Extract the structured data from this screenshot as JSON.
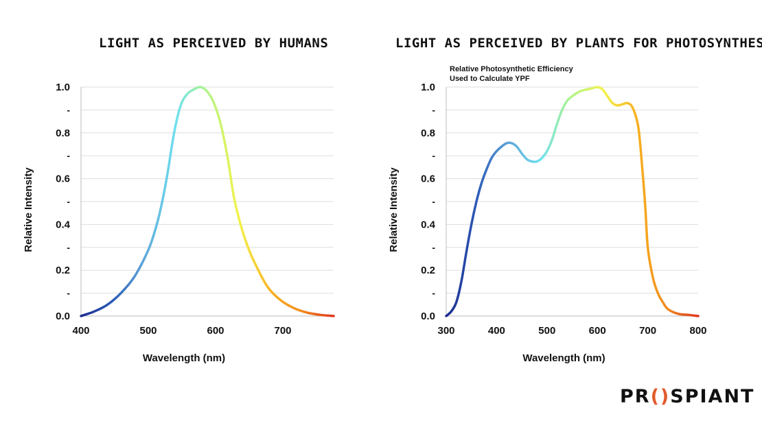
{
  "chart_data": [
    {
      "type": "line",
      "title": "LIGHT AS PERCEIVED BY HUMANS",
      "subtitle": "",
      "xlabel": "Wavelength (nm)",
      "ylabel": "Relative Intensity",
      "xlim": [
        400,
        780
      ],
      "ylim": [
        0,
        1.0
      ],
      "x_ticks": [
        "400",
        "500",
        "600",
        "700"
      ],
      "y_ticks": [
        "0.0",
        "-",
        "0.2",
        "-",
        "0.4",
        "-",
        "0.6",
        "-",
        "0.8",
        "-",
        "1.0"
      ],
      "grid": true,
      "series": [
        {
          "x": [
            400,
            420,
            440,
            460,
            480,
            500,
            510,
            520,
            530,
            540,
            550,
            560,
            570,
            580,
            590,
            600,
            610,
            620,
            630,
            640,
            650,
            660,
            680,
            700,
            720,
            740,
            760,
            780
          ],
          "values": [
            0.0,
            0.02,
            0.05,
            0.1,
            0.17,
            0.28,
            0.36,
            0.47,
            0.62,
            0.8,
            0.92,
            0.97,
            0.99,
            1.0,
            0.98,
            0.93,
            0.84,
            0.7,
            0.52,
            0.4,
            0.31,
            0.24,
            0.13,
            0.07,
            0.035,
            0.015,
            0.005,
            0.0
          ]
        }
      ]
    },
    {
      "type": "line",
      "title": "LIGHT AS PERCEIVED BY PLANTS FOR PHOTOSYNTHESIS",
      "subtitle": "Relative Photosynthetic Efficiency Used to Calculate YPF",
      "xlabel": "Wavelength (nm)",
      "ylabel": "Relative Intensity",
      "xlim": [
        300,
        800
      ],
      "ylim": [
        0,
        1.0
      ],
      "x_ticks": [
        "300",
        "400",
        "500",
        "600",
        "700",
        "800"
      ],
      "y_ticks": [
        "0.0",
        "-",
        "0.2",
        "-",
        "0.4",
        "-",
        "0.6",
        "-",
        "0.8",
        "-",
        "1.0"
      ],
      "grid": true,
      "series": [
        {
          "x": [
            300,
            310,
            320,
            330,
            340,
            350,
            360,
            370,
            380,
            390,
            400,
            410,
            420,
            430,
            440,
            450,
            460,
            470,
            480,
            490,
            500,
            510,
            520,
            530,
            540,
            550,
            560,
            570,
            580,
            590,
            600,
            610,
            620,
            630,
            640,
            650,
            660,
            670,
            680,
            685,
            690,
            695,
            700,
            710,
            720,
            730,
            740,
            760,
            780,
            800
          ],
          "values": [
            0.0,
            0.02,
            0.06,
            0.15,
            0.28,
            0.4,
            0.5,
            0.58,
            0.64,
            0.69,
            0.72,
            0.74,
            0.755,
            0.755,
            0.74,
            0.71,
            0.685,
            0.675,
            0.675,
            0.69,
            0.72,
            0.77,
            0.84,
            0.9,
            0.94,
            0.96,
            0.975,
            0.985,
            0.99,
            0.995,
            1.0,
            0.99,
            0.96,
            0.93,
            0.92,
            0.925,
            0.93,
            0.91,
            0.84,
            0.75,
            0.62,
            0.48,
            0.3,
            0.17,
            0.1,
            0.06,
            0.03,
            0.01,
            0.005,
            0.0
          ]
        }
      ]
    }
  ],
  "charts": {
    "left": {
      "title": "LIGHT AS PERCEIVED BY HUMANS"
    },
    "right": {
      "title": "LIGHT AS PERCEIVED BY PLANTS FOR PHOTOSYNTHESIS",
      "subtitle_line1": "Relative Photosynthetic Efficiency",
      "subtitle_line2": "Used to Calculate YPF"
    }
  },
  "logo": {
    "text_before": "PR",
    "mark": "()",
    "text_after": "SPIANT"
  },
  "colors": {
    "gradient": [
      "#1b2a8f",
      "#2d5cb8",
      "#5fa7d9",
      "#6fe0ef",
      "#b3f58a",
      "#f4f24a",
      "#f7b321",
      "#f18a1c",
      "#e0351c"
    ],
    "logo_mark": "#e25a2b",
    "grid": "#dddddd"
  }
}
